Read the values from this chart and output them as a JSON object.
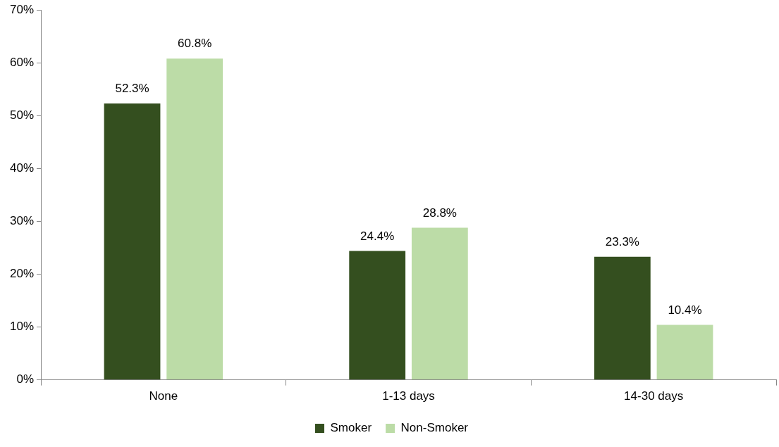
{
  "chart_data": {
    "type": "bar",
    "categories": [
      "None",
      "1-13 days",
      "14-30 days"
    ],
    "series": [
      {
        "name": "Smoker",
        "color": "#344f1f",
        "values": [
          52.3,
          24.4,
          23.3
        ],
        "value_labels": [
          "52.3%",
          "24.4%",
          "23.3%"
        ]
      },
      {
        "name": "Non-Smoker",
        "color": "#bcdca7",
        "values": [
          60.8,
          28.8,
          10.4
        ],
        "value_labels": [
          "60.8%",
          "28.8%",
          "10.4%"
        ]
      }
    ],
    "ylim": [
      0,
      70
    ],
    "yticks": [
      {
        "value": 0,
        "label": "0%"
      },
      {
        "value": 10,
        "label": "10%"
      },
      {
        "value": 20,
        "label": "20%"
      },
      {
        "value": 30,
        "label": "30%"
      },
      {
        "value": 40,
        "label": "40%"
      },
      {
        "value": 50,
        "label": "50%"
      },
      {
        "value": 60,
        "label": "60%"
      },
      {
        "value": 70,
        "label": "70%"
      }
    ],
    "legend": "bottom"
  }
}
